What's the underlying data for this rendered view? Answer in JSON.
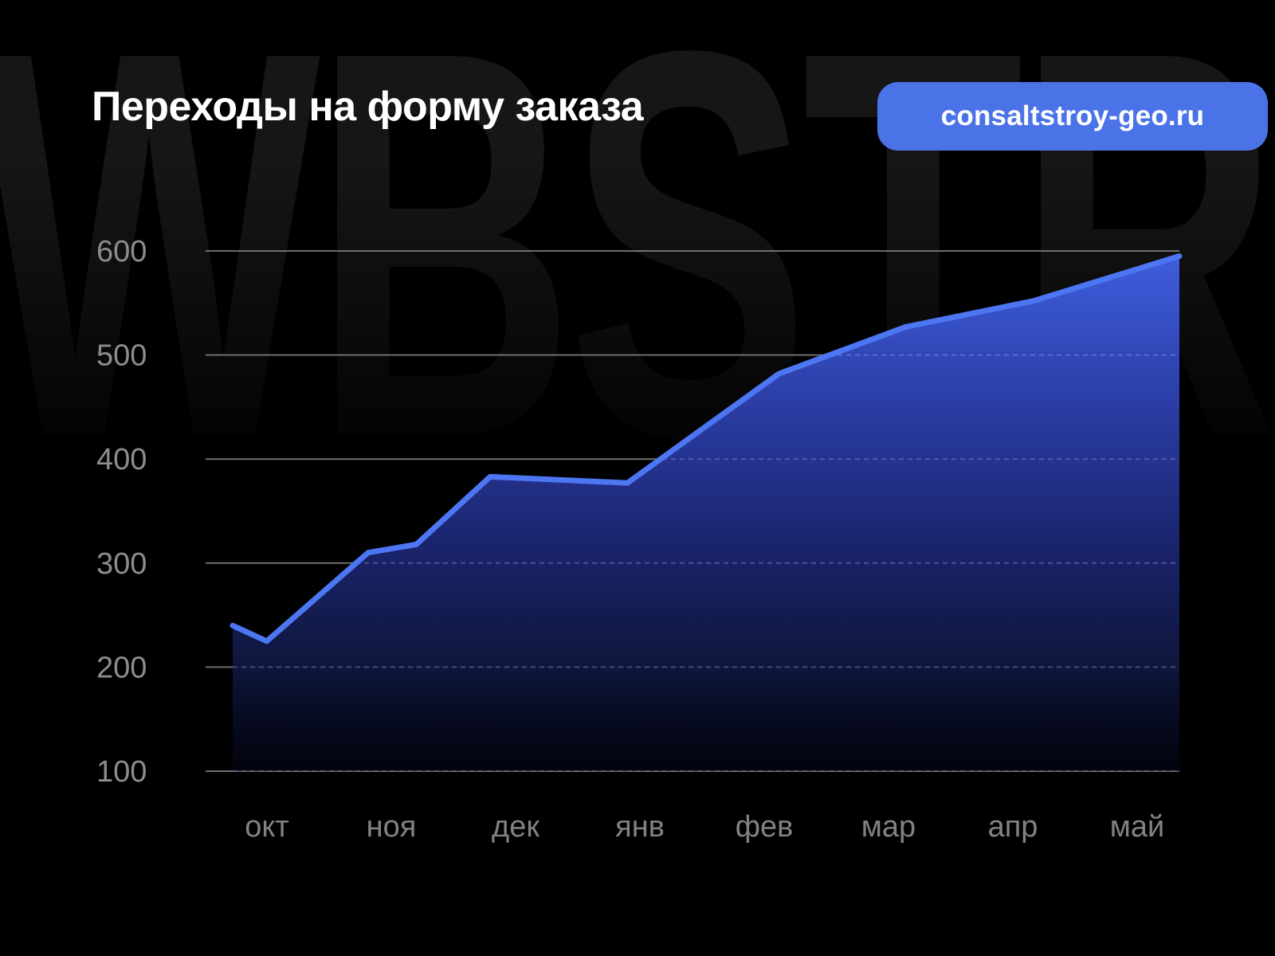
{
  "page": {
    "background": "#000000"
  },
  "watermark": {
    "text": "WBSTR",
    "color": "#161616"
  },
  "header": {
    "title": "Переходы на форму заказа"
  },
  "badge": {
    "label": "consaltstroy-geo.ru",
    "bg": "#4b73e8",
    "text_color": "#ffffff"
  },
  "chart_data": {
    "type": "area",
    "title": "Переходы на форму заказа",
    "categories": [
      "окт",
      "ноя",
      "дек",
      "янв",
      "фев",
      "мар",
      "апр",
      "май"
    ],
    "values": [
      225,
      315,
      385,
      375,
      480,
      525,
      550,
      595
    ],
    "ylim": [
      100,
      600
    ],
    "yticks": [
      100,
      200,
      300,
      400,
      500,
      600
    ],
    "grid": true,
    "legend": false,
    "xlabel": "",
    "ylabel": "",
    "line_color": "#4c76f2",
    "fill_top_color": "#3f5ede",
    "fill_bottom_color": "#04061a",
    "grid_color": "#7b7b7b",
    "grid_over_fill_color": "#aebcff",
    "ytick_color": "#8d8d8d",
    "xtick_color": "#828282",
    "detail_points": [
      {
        "t": 0.0,
        "v": 240
      },
      {
        "t": 0.036,
        "v": 225
      },
      {
        "t": 0.143,
        "v": 310
      },
      {
        "t": 0.194,
        "v": 318
      },
      {
        "t": 0.272,
        "v": 383
      },
      {
        "t": 0.417,
        "v": 377
      },
      {
        "t": 0.577,
        "v": 482
      },
      {
        "t": 0.711,
        "v": 527
      },
      {
        "t": 0.846,
        "v": 552
      },
      {
        "t": 1.0,
        "v": 595
      }
    ]
  }
}
